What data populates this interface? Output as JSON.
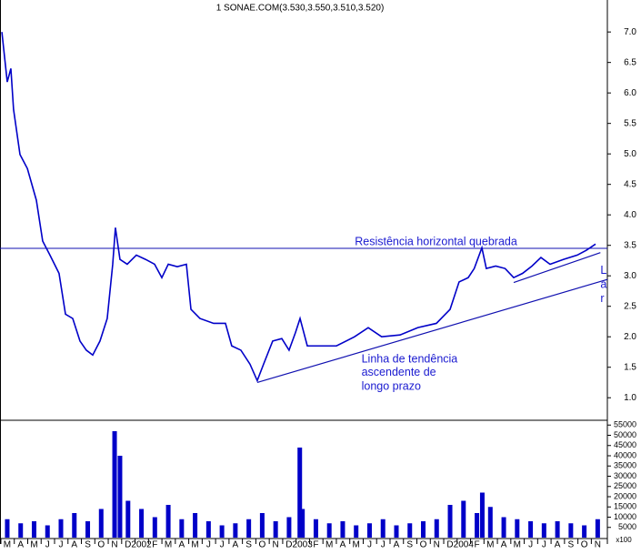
{
  "chart_data": {
    "type": "line",
    "title": "1 SONAE.COM(3.530,3.550,3.510,3.520)",
    "color": "#0000c8",
    "xlim": [
      -0.54,
      44.72
    ],
    "xticks": [
      {
        "value": 0,
        "label": "M"
      },
      {
        "value": 1,
        "label": "A"
      },
      {
        "value": 2,
        "label": "M"
      },
      {
        "value": 3,
        "label": "J"
      },
      {
        "value": 4,
        "label": "J"
      },
      {
        "value": 5,
        "label": "A"
      },
      {
        "value": 6,
        "label": "S"
      },
      {
        "value": 7,
        "label": "O"
      },
      {
        "value": 8,
        "label": "N"
      },
      {
        "value": 9,
        "label": "D"
      },
      {
        "value": 10,
        "label": "2002"
      },
      {
        "value": 11,
        "label": "F"
      },
      {
        "value": 12,
        "label": "M"
      },
      {
        "value": 13,
        "label": "A"
      },
      {
        "value": 14,
        "label": "M"
      },
      {
        "value": 15,
        "label": "J"
      },
      {
        "value": 16,
        "label": "J"
      },
      {
        "value": 17,
        "label": "A"
      },
      {
        "value": 18,
        "label": "S"
      },
      {
        "value": 19,
        "label": "O"
      },
      {
        "value": 20,
        "label": "N"
      },
      {
        "value": 21,
        "label": "D"
      },
      {
        "value": 22,
        "label": "2003"
      },
      {
        "value": 23,
        "label": "F"
      },
      {
        "value": 24,
        "label": "M"
      },
      {
        "value": 25,
        "label": "A"
      },
      {
        "value": 26,
        "label": "M"
      },
      {
        "value": 27,
        "label": "J"
      },
      {
        "value": 28,
        "label": "J"
      },
      {
        "value": 29,
        "label": "A"
      },
      {
        "value": 30,
        "label": "S"
      },
      {
        "value": 31,
        "label": "O"
      },
      {
        "value": 32,
        "label": "N"
      },
      {
        "value": 33,
        "label": "D"
      },
      {
        "value": 34,
        "label": "2004"
      },
      {
        "value": 35,
        "label": "F"
      },
      {
        "value": 36,
        "label": "M"
      },
      {
        "value": 37,
        "label": "A"
      },
      {
        "value": 38,
        "label": "M"
      },
      {
        "value": 39,
        "label": "J"
      },
      {
        "value": 40,
        "label": "J"
      },
      {
        "value": 41,
        "label": "A"
      },
      {
        "value": 42,
        "label": "S"
      },
      {
        "value": 43,
        "label": "O"
      },
      {
        "value": 44,
        "label": "N"
      }
    ],
    "ylim": [
      0.66,
      7.45
    ],
    "yticks": [
      {
        "value": 1,
        "label": "1.0"
      },
      1.5,
      {
        "value": 2,
        "label": "2.0"
      },
      2.5,
      {
        "value": 3,
        "label": "3.0"
      },
      3.5,
      {
        "value": 4,
        "label": "4.0"
      },
      4.5,
      {
        "value": 5,
        "label": "5.0"
      },
      5.5,
      {
        "value": 6,
        "label": "6.0"
      },
      6.5,
      {
        "value": 7,
        "label": "7.0"
      }
    ],
    "x": [
      -0.4,
      0,
      0.27,
      0.47,
      0.95,
      1.5,
      2.17,
      2.64,
      3.18,
      3.86,
      4.34,
      4.88,
      5.42,
      5.89,
      6.37,
      6.91,
      7.45,
      7.86,
      8.06,
      8.4,
      8.94,
      9.62,
      10.3,
      10.98,
      11.52,
      12.0,
      12.67,
      13.35,
      13.69,
      14.36,
      15.38,
      16.26,
      16.73,
      17.41,
      18.09,
      18.63,
      19.1,
      19.78,
      20.46,
      21.0,
      21.48,
      21.82,
      22.36,
      23.17,
      24.53,
      25.88,
      26.9,
      27.9,
      29.27,
      30.6,
      31.98,
      33.0,
      33.67,
      34.35,
      34.8,
      35.37,
      35.7,
      36.4,
      37.1,
      37.74,
      38.4,
      39.1,
      39.77,
      40.45,
      41.46,
      42.48,
      43.16,
      43.84
    ],
    "series": [
      {
        "values": [
          7.0,
          6.18,
          6.4,
          5.73,
          4.99,
          4.76,
          4.24,
          3.57,
          3.34,
          3.04,
          2.37,
          2.3,
          1.93,
          1.78,
          1.7,
          1.93,
          2.3,
          3.19,
          3.79,
          3.27,
          3.19,
          3.34,
          3.27,
          3.19,
          2.97,
          3.19,
          3.15,
          3.19,
          2.45,
          2.3,
          2.22,
          2.22,
          1.85,
          1.78,
          1.55,
          1.28,
          1.55,
          1.93,
          1.97,
          1.78,
          2.07,
          2.3,
          1.85,
          1.85,
          1.85,
          2.0,
          2.15,
          2.0,
          2.03,
          2.15,
          2.22,
          2.45,
          2.9,
          2.97,
          3.12,
          3.46,
          3.12,
          3.16,
          3.12,
          2.97,
          3.04,
          3.16,
          3.3,
          3.19,
          3.27,
          3.34,
          3.42,
          3.52
        ]
      }
    ],
    "resistance": 3.45,
    "trendlines": [
      {
        "x": [
          18.63,
          44.72
        ],
        "y": [
          1.25,
          2.94
        ]
      },
      {
        "x": [
          37.74,
          44.2
        ],
        "y": [
          2.89,
          3.38
        ]
      }
    ],
    "annotations": [
      {
        "text": "Resistência horizontal quebrada",
        "x": 25.9,
        "y": 3.55
      },
      {
        "text": "Linha de tendência",
        "x": 26.4,
        "y": 1.63
      },
      {
        "text": "ascendente de",
        "x": 26.4,
        "y": 1.41
      },
      {
        "text": "longo prazo",
        "x": 26.4,
        "y": 1.18
      },
      {
        "text": "L",
        "x": 44.2,
        "y": 3.08
      },
      {
        "text": "a",
        "x": 44.2,
        "y": 2.85
      },
      {
        "text": "r",
        "x": 44.2,
        "y": 2.62
      }
    ],
    "volume": {
      "unit_label": "x100",
      "color": "#0000c8",
      "ylim": [
        0,
        56000
      ],
      "yticks": [
        5000,
        10000,
        15000,
        20000,
        25000,
        30000,
        35000,
        40000,
        45000,
        50000,
        55000
      ],
      "x": [
        0,
        1,
        2,
        3,
        4,
        5,
        6,
        7,
        8,
        8.4,
        9,
        10,
        11,
        12,
        13,
        14,
        15,
        16,
        17,
        18,
        19,
        20,
        21,
        21.8,
        22,
        23,
        24,
        25,
        26,
        27,
        28,
        29,
        30,
        31,
        32,
        33,
        34,
        35,
        35.4,
        36,
        37,
        38,
        39,
        40,
        41,
        42,
        43,
        44
      ],
      "values": [
        9000,
        7000,
        8000,
        6000,
        9000,
        12000,
        8000,
        14000,
        52000,
        40000,
        18000,
        14000,
        10000,
        16000,
        9000,
        12000,
        8000,
        6000,
        7000,
        9000,
        12000,
        8000,
        10000,
        44000,
        14000,
        9000,
        7000,
        8000,
        6000,
        7000,
        9000,
        6000,
        7000,
        8000,
        9000,
        16000,
        18000,
        12000,
        22000,
        15000,
        10000,
        9000,
        8000,
        7000,
        8000,
        7000,
        6000,
        9000
      ]
    }
  }
}
